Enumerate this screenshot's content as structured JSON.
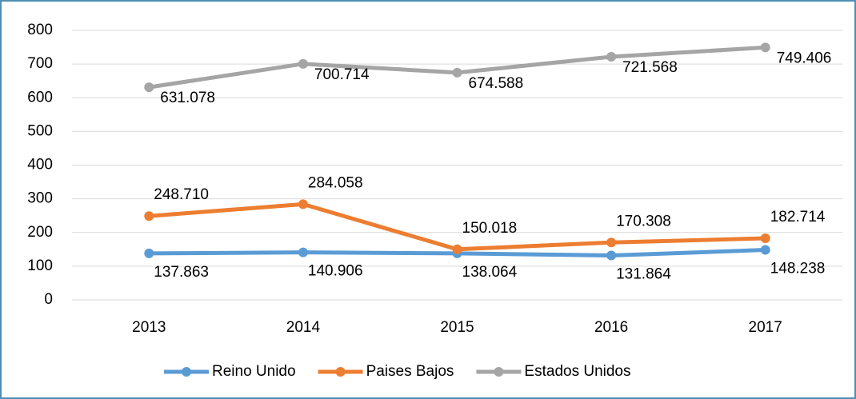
{
  "chart_data": {
    "type": "line",
    "categories": [
      "2013",
      "2014",
      "2015",
      "2016",
      "2017"
    ],
    "series": [
      {
        "name": "Reino Unido",
        "color": "#5b9bd5",
        "values": [
          137.863,
          140.906,
          138.064,
          131.864,
          148.238
        ]
      },
      {
        "name": "Paises Bajos",
        "color": "#ed7d31",
        "values": [
          248.71,
          284.058,
          150.018,
          170.308,
          182.714
        ]
      },
      {
        "name": "Estados Unidos",
        "color": "#a5a5a5",
        "values": [
          631.078,
          700.714,
          674.588,
          721.568,
          749.406
        ]
      }
    ],
    "value_labels": [
      [
        "137.863",
        "140.906",
        "138.064",
        "131.864",
        "148.238"
      ],
      [
        "248.710",
        "284.058",
        "150.018",
        "170.308",
        "182.714"
      ],
      [
        "631.078",
        "700.714",
        "674.588",
        "721.568",
        "749.406"
      ]
    ],
    "ylim": [
      0,
      800
    ],
    "yticks": [
      0,
      100,
      200,
      300,
      400,
      500,
      600,
      700,
      800
    ],
    "grid": true,
    "legend": "bottom"
  }
}
